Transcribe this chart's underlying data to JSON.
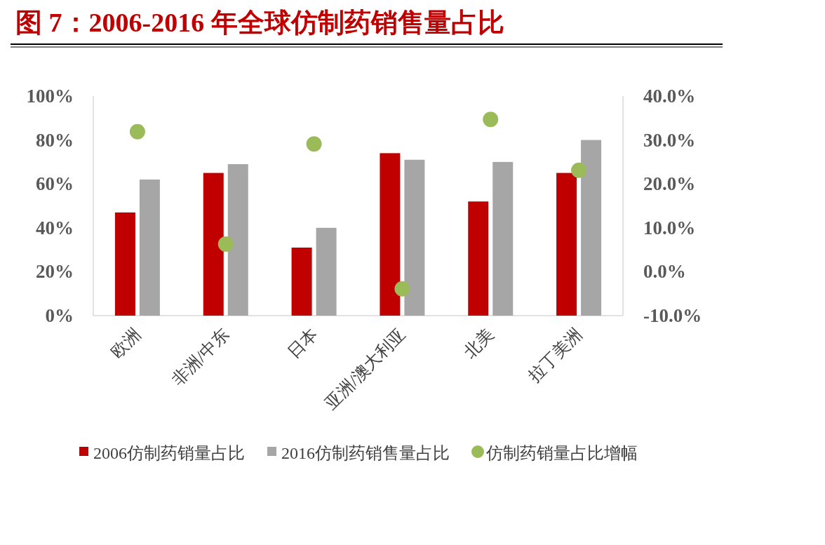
{
  "chart_data": {
    "type": "bar",
    "title": "图 7：2006-2016 年全球仿制药销售量占比",
    "categories": [
      "欧洲",
      "非洲/中东",
      "日本",
      "亚洲/澳大利亚",
      "北美",
      "拉丁美洲"
    ],
    "series": [
      {
        "name": "2006仿制药销量占比",
        "color": "#c00000",
        "values": [
          47,
          65,
          31,
          74,
          52,
          65
        ]
      },
      {
        "name": "2016仿制药销售量占比",
        "color": "#a6a6a6",
        "values": [
          62,
          69,
          40,
          71,
          70,
          80
        ]
      },
      {
        "name": "仿制药销量占比增幅",
        "type": "scatter",
        "axis": "y2",
        "color": "#9bbb59",
        "values": [
          31.9,
          6.3,
          29.1,
          -3.9,
          34.7,
          23.1
        ]
      }
    ],
    "ylim": [
      0,
      100
    ],
    "yticks": [
      {
        "value": 0,
        "label": "0%"
      },
      {
        "value": 20,
        "label": "20%"
      },
      {
        "value": 40,
        "label": "40%"
      },
      {
        "value": 60,
        "label": "60%"
      },
      {
        "value": 80,
        "label": "80%"
      },
      {
        "value": 100,
        "label": "100%"
      }
    ],
    "y2lim": [
      -10,
      40
    ],
    "y2ticks": [
      {
        "value": -10,
        "label": "-10.0%"
      },
      {
        "value": 0,
        "label": "0.0%"
      },
      {
        "value": 10,
        "label": "10.0%"
      },
      {
        "value": 20,
        "label": "20.0%"
      },
      {
        "value": 30,
        "label": "30.0%"
      },
      {
        "value": 40,
        "label": "40.0%"
      }
    ],
    "legend": "bottom",
    "marker": "circle",
    "grid": false
  }
}
